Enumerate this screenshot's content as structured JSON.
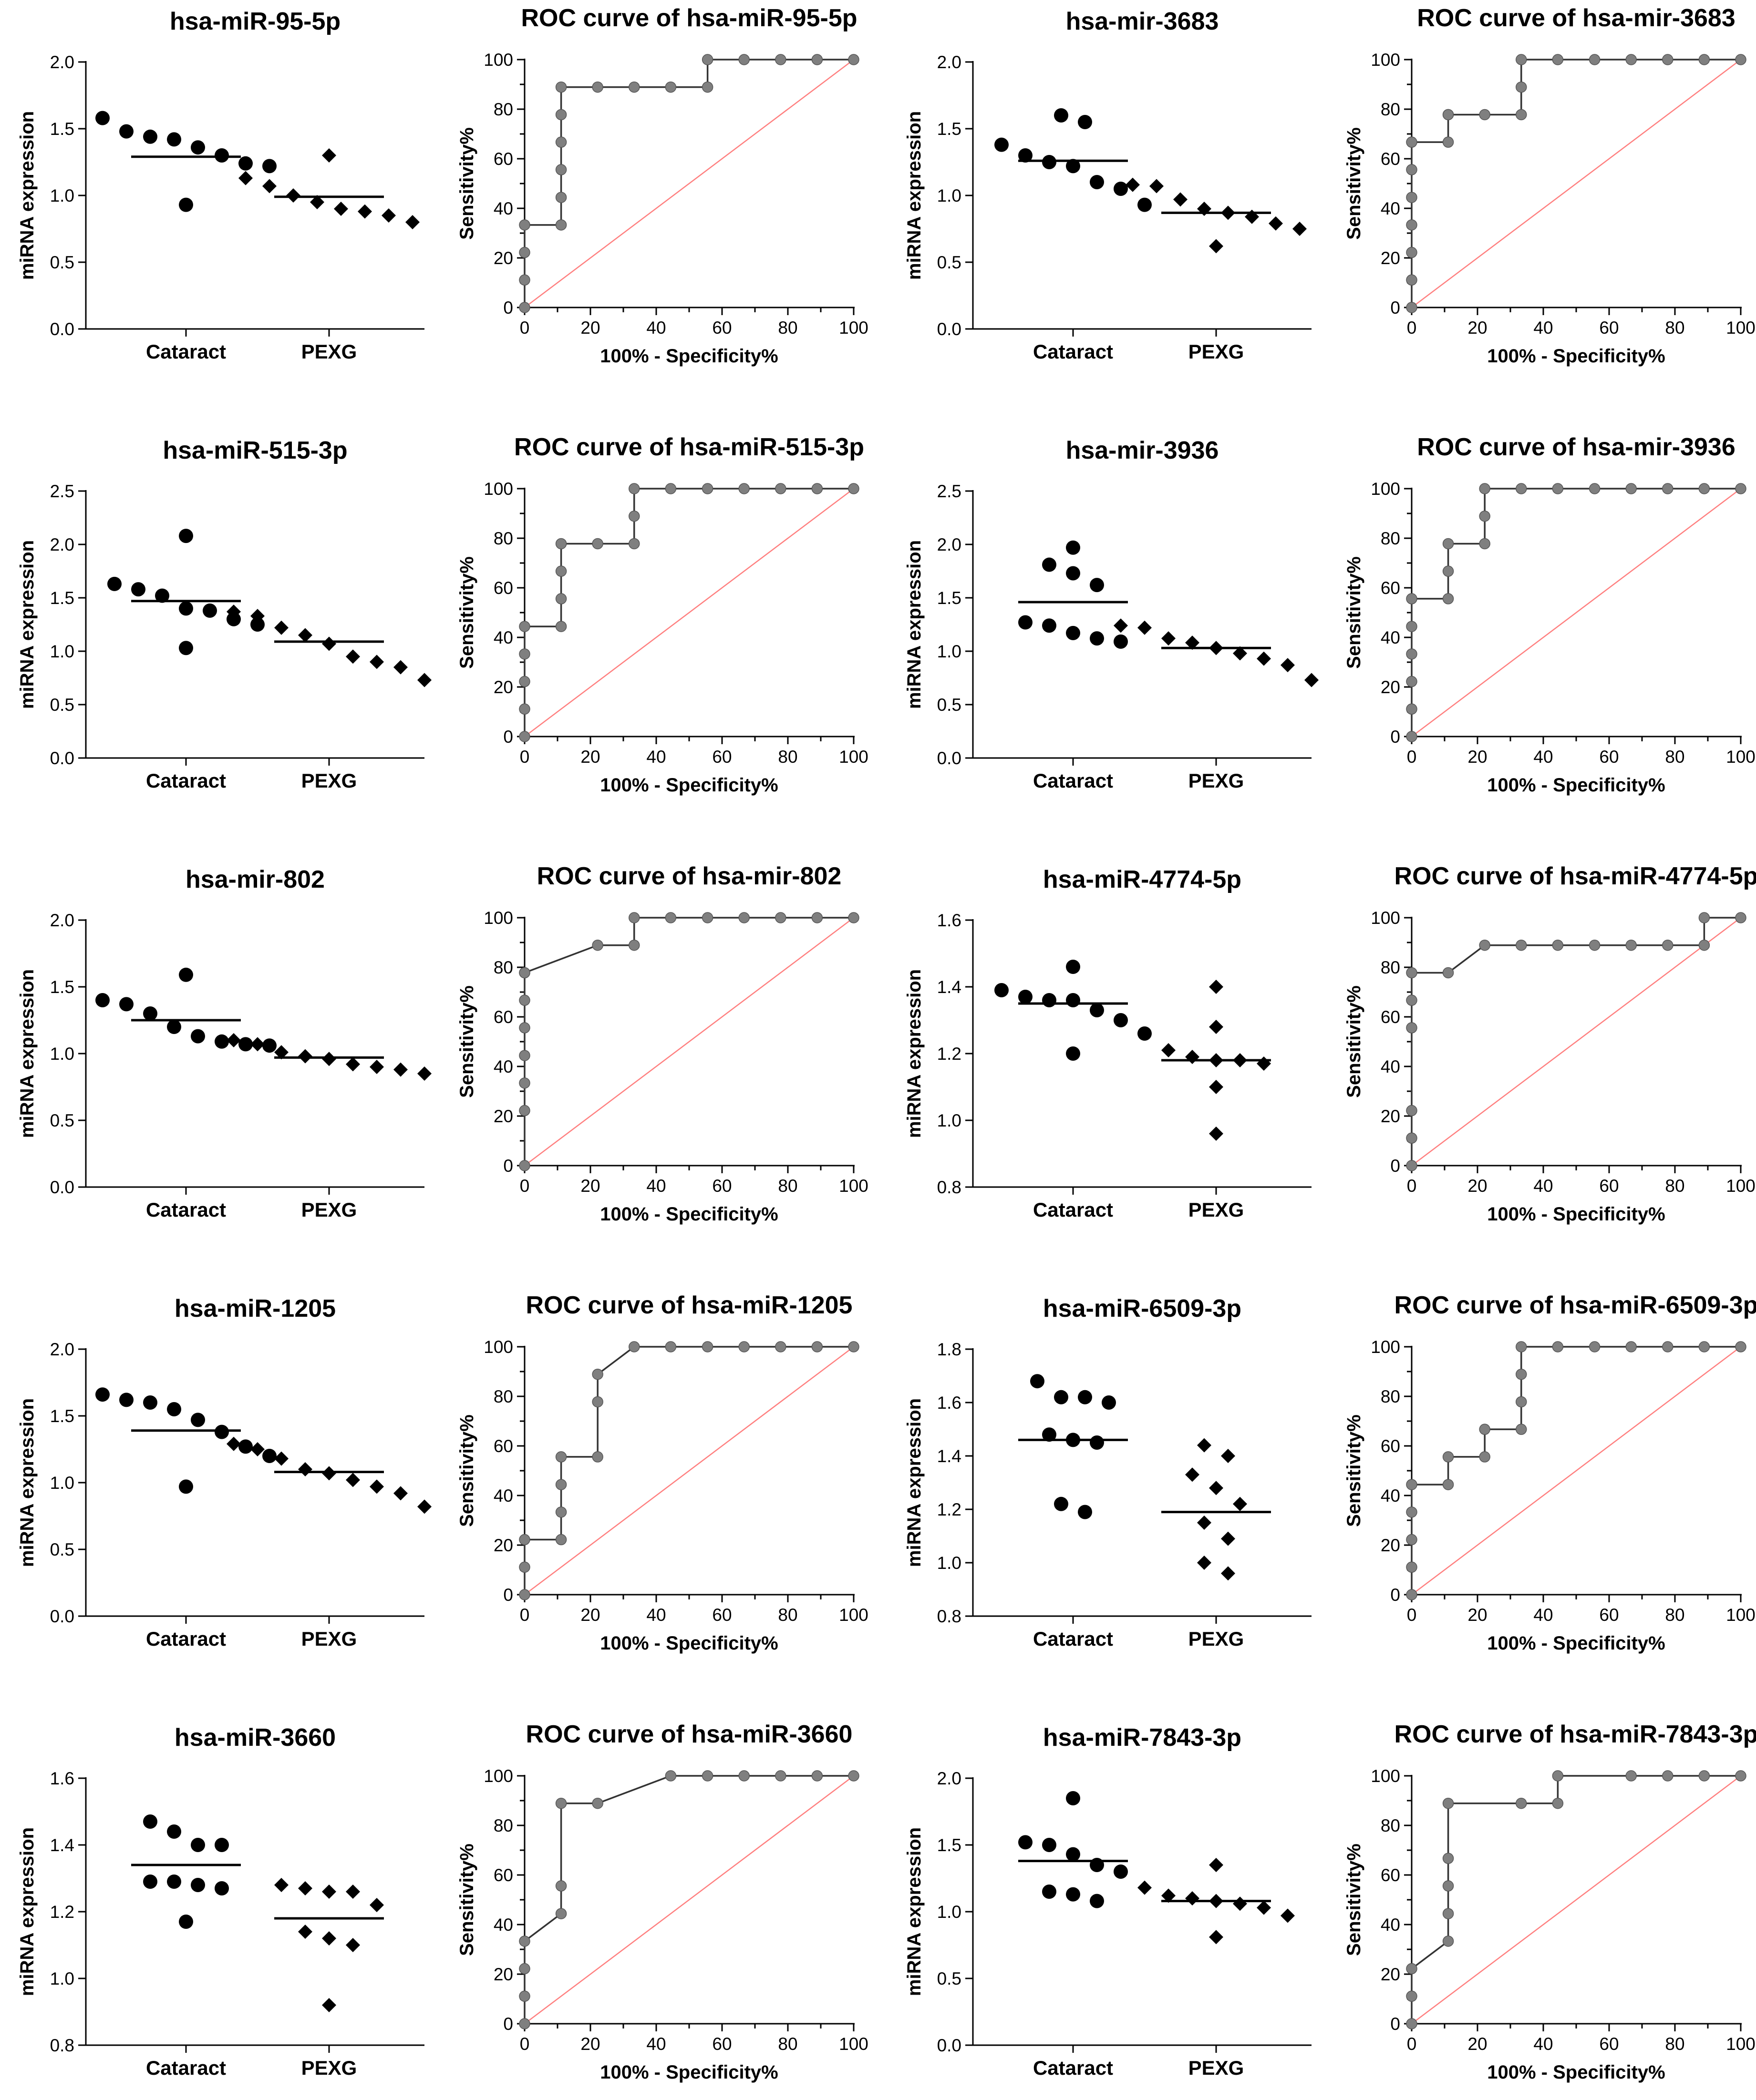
{
  "figure": {
    "colors": {
      "marker": "#000000",
      "roc_line": "#333333",
      "roc_point": "#7f7f7f",
      "diagonal": "#ff7f7f",
      "axis": "#000000"
    }
  },
  "chart_data": [
    {
      "id": "r1c1",
      "type": "scatter",
      "title": "hsa-miR-95-5p",
      "ylabel": "miRNA expression",
      "categories": [
        "Cataract",
        "PEXG"
      ],
      "ylim": [
        0,
        2.0
      ],
      "yticks": [
        "0.0",
        "0.5",
        "1.0",
        "1.5",
        "2.0"
      ],
      "series": [
        {
          "name": "Cataract",
          "marker": "circle",
          "values": [
            1.58,
            1.42,
            1.48,
            1.44,
            1.36,
            1.3,
            1.22,
            1.24,
            0.93
          ],
          "mean": 1.29
        },
        {
          "name": "PEXG",
          "marker": "diamond",
          "values": [
            1.3,
            1.13,
            1.07,
            1.0,
            0.95,
            0.9,
            0.88,
            0.85,
            0.8
          ],
          "mean": 0.99
        }
      ]
    },
    {
      "id": "r1c2",
      "type": "line",
      "title": "ROC curve of hsa-miR-95-5p",
      "xlabel": "100% - Specificity%",
      "ylabel": "Sensitivity%",
      "xlim": [
        0,
        100
      ],
      "ylim": [
        0,
        100
      ],
      "xticks": [
        "0",
        "20",
        "40",
        "60",
        "80",
        "100"
      ],
      "yticks": [
        "0",
        "20",
        "40",
        "60",
        "80",
        "100"
      ],
      "x": [
        0,
        0,
        0,
        0,
        11.1,
        11.1,
        11.1,
        11.1,
        11.1,
        11.1,
        22.2,
        33.3,
        44.4,
        55.6,
        55.6,
        66.7,
        77.8,
        88.9,
        100
      ],
      "y": [
        0,
        11.1,
        22.2,
        33.3,
        33.3,
        44.4,
        55.6,
        66.7,
        77.8,
        88.9,
        88.9,
        88.9,
        88.9,
        88.9,
        100,
        100,
        100,
        100,
        100
      ]
    },
    {
      "id": "r1c3",
      "type": "scatter",
      "title": "hsa-mir-3683",
      "ylabel": "miRNA expression",
      "categories": [
        "Cataract",
        "PEXG"
      ],
      "ylim": [
        0,
        2.0
      ],
      "yticks": [
        "0.0",
        "0.5",
        "1.0",
        "1.5",
        "2.0"
      ],
      "series": [
        {
          "name": "Cataract",
          "marker": "circle",
          "values": [
            1.6,
            1.55,
            1.38,
            1.3,
            1.25,
            1.22,
            1.1,
            1.05,
            0.93
          ],
          "mean": 1.26
        },
        {
          "name": "PEXG",
          "marker": "diamond",
          "values": [
            1.08,
            1.07,
            0.97,
            0.9,
            0.87,
            0.84,
            0.79,
            0.75,
            0.62
          ],
          "mean": 0.87
        }
      ]
    },
    {
      "id": "r1c4",
      "type": "line",
      "title": "ROC curve of hsa-mir-3683",
      "xlabel": "100% - Specificity%",
      "ylabel": "Sensitivity%",
      "xlim": [
        0,
        100
      ],
      "ylim": [
        0,
        100
      ],
      "xticks": [
        "0",
        "20",
        "40",
        "60",
        "80",
        "100"
      ],
      "yticks": [
        "0",
        "20",
        "40",
        "60",
        "80",
        "100"
      ],
      "x": [
        0,
        0,
        0,
        0,
        0,
        0,
        0,
        11.1,
        11.1,
        11.1,
        22.2,
        33.3,
        33.3,
        33.3,
        44.4,
        55.6,
        66.7,
        77.8,
        88.9,
        100
      ],
      "y": [
        0,
        11.1,
        22.2,
        33.3,
        44.4,
        55.6,
        66.7,
        66.7,
        77.8,
        77.8,
        77.8,
        77.8,
        88.9,
        100,
        100,
        100,
        100,
        100,
        100,
        100
      ]
    },
    {
      "id": "r2c1",
      "type": "scatter",
      "title": "hsa-miR-515-3p",
      "ylabel": "miRNA expression",
      "categories": [
        "Cataract",
        "PEXG"
      ],
      "ylim": [
        0,
        2.5
      ],
      "yticks": [
        "0.0",
        "0.5",
        "1.0",
        "1.5",
        "2.0",
        "2.5"
      ],
      "series": [
        {
          "name": "Cataract",
          "marker": "circle",
          "values": [
            2.08,
            1.63,
            1.58,
            1.52,
            1.4,
            1.38,
            1.25,
            1.3,
            1.03
          ],
          "mean": 1.47
        },
        {
          "name": "PEXG",
          "marker": "diamond",
          "values": [
            1.37,
            1.33,
            1.22,
            1.15,
            1.07,
            0.95,
            0.9,
            0.85,
            0.73
          ],
          "mean": 1.09
        }
      ]
    },
    {
      "id": "r2c2",
      "type": "line",
      "title": "ROC curve of hsa-miR-515-3p",
      "xlabel": "100% - Specificity%",
      "ylabel": "Sensitivity%",
      "xlim": [
        0,
        100
      ],
      "ylim": [
        0,
        100
      ],
      "xticks": [
        "0",
        "20",
        "40",
        "60",
        "80",
        "100"
      ],
      "yticks": [
        "0",
        "20",
        "40",
        "60",
        "80",
        "100"
      ],
      "x": [
        0,
        0,
        0,
        0,
        0,
        11.1,
        11.1,
        11.1,
        11.1,
        22.2,
        33.3,
        33.3,
        33.3,
        44.4,
        55.6,
        66.7,
        77.8,
        88.9,
        100
      ],
      "y": [
        0,
        11.1,
        22.2,
        33.3,
        44.4,
        44.4,
        55.6,
        66.7,
        77.8,
        77.8,
        77.8,
        88.9,
        100,
        100,
        100,
        100,
        100,
        100,
        100
      ]
    },
    {
      "id": "r2c3",
      "type": "scatter",
      "title": "hsa-mir-3936",
      "ylabel": "miRNA expression",
      "categories": [
        "Cataract",
        "PEXG"
      ],
      "ylim": [
        0,
        2.5
      ],
      "yticks": [
        "0.0",
        "0.5",
        "1.0",
        "1.5",
        "2.0",
        "2.5"
      ],
      "series": [
        {
          "name": "Cataract",
          "marker": "circle",
          "values": [
            1.97,
            1.81,
            1.73,
            1.62,
            1.27,
            1.24,
            1.17,
            1.12,
            1.09
          ],
          "mean": 1.46
        },
        {
          "name": "PEXG",
          "marker": "diamond",
          "values": [
            1.24,
            1.22,
            1.12,
            1.08,
            1.03,
            0.98,
            0.93,
            0.87,
            0.73
          ],
          "mean": 1.03
        }
      ]
    },
    {
      "id": "r2c4",
      "type": "line",
      "title": "ROC curve of hsa-mir-3936",
      "xlabel": "100% - Specificity%",
      "ylabel": "Sensitivity%",
      "xlim": [
        0,
        100
      ],
      "ylim": [
        0,
        100
      ],
      "xticks": [
        "0",
        "20",
        "40",
        "60",
        "80",
        "100"
      ],
      "yticks": [
        "0",
        "20",
        "40",
        "60",
        "80",
        "100"
      ],
      "x": [
        0,
        0,
        0,
        0,
        0,
        0,
        11.1,
        11.1,
        11.1,
        22.2,
        22.2,
        22.2,
        33.3,
        44.4,
        55.6,
        66.7,
        77.8,
        88.9,
        100
      ],
      "y": [
        0,
        11.1,
        22.2,
        33.3,
        44.4,
        55.6,
        55.6,
        66.7,
        77.8,
        77.8,
        88.9,
        100,
        100,
        100,
        100,
        100,
        100,
        100,
        100
      ]
    },
    {
      "id": "r3c1",
      "type": "scatter",
      "title": "hsa-mir-802",
      "ylabel": "miRNA expression",
      "categories": [
        "Cataract",
        "PEXG"
      ],
      "ylim": [
        0,
        2.0
      ],
      "yticks": [
        "0.0",
        "0.5",
        "1.0",
        "1.5",
        "2.0"
      ],
      "series": [
        {
          "name": "Cataract",
          "marker": "circle",
          "values": [
            1.59,
            1.4,
            1.37,
            1.3,
            1.2,
            1.13,
            1.09,
            1.07,
            1.06
          ],
          "mean": 1.25
        },
        {
          "name": "PEXG",
          "marker": "diamond",
          "values": [
            1.1,
            1.07,
            1.01,
            0.98,
            0.96,
            0.92,
            0.9,
            0.88,
            0.85
          ],
          "mean": 0.97
        }
      ]
    },
    {
      "id": "r3c2",
      "type": "line",
      "title": "ROC curve of hsa-mir-802",
      "xlabel": "100% - Specificity%",
      "ylabel": "Sensitivity%",
      "xlim": [
        0,
        100
      ],
      "ylim": [
        0,
        100
      ],
      "xticks": [
        "0",
        "20",
        "40",
        "60",
        "80",
        "100"
      ],
      "yticks": [
        "0",
        "20",
        "40",
        "60",
        "80",
        "100"
      ],
      "x": [
        0,
        0,
        0,
        0,
        0,
        0,
        0,
        0,
        22.2,
        33.3,
        33.3,
        44.4,
        55.6,
        66.7,
        77.8,
        88.9,
        100
      ],
      "y": [
        0,
        22.2,
        33.3,
        44.4,
        55.6,
        66.7,
        77.8,
        77.8,
        88.9,
        88.9,
        100,
        100,
        100,
        100,
        100,
        100,
        100
      ]
    },
    {
      "id": "r3c3",
      "type": "scatter",
      "title": "hsa-miR-4774-5p",
      "ylabel": "miRNA expression",
      "categories": [
        "Cataract",
        "PEXG"
      ],
      "ylim": [
        0.8,
        1.6
      ],
      "yticks": [
        "0.8",
        "1.0",
        "1.2",
        "1.4",
        "1.6"
      ],
      "series": [
        {
          "name": "Cataract",
          "marker": "circle",
          "values": [
            1.46,
            1.39,
            1.37,
            1.36,
            1.36,
            1.33,
            1.3,
            1.26,
            1.2
          ],
          "mean": 1.35
        },
        {
          "name": "PEXG",
          "marker": "diamond",
          "values": [
            1.4,
            1.28,
            1.21,
            1.19,
            1.18,
            1.18,
            1.17,
            1.1,
            0.96
          ],
          "mean": 1.18
        }
      ]
    },
    {
      "id": "r3c4",
      "type": "line",
      "title": "ROC curve of hsa-miR-4774-5p",
      "xlabel": "100% - Specificity%",
      "ylabel": "Sensitivity%",
      "xlim": [
        0,
        100
      ],
      "ylim": [
        0,
        100
      ],
      "xticks": [
        "0",
        "20",
        "40",
        "60",
        "80",
        "100"
      ],
      "yticks": [
        "0",
        "20",
        "40",
        "60",
        "80",
        "100"
      ],
      "x": [
        0,
        0,
        0,
        0,
        0,
        0,
        11.1,
        22.2,
        33.3,
        44.4,
        55.6,
        66.7,
        77.8,
        88.9,
        88.9,
        100
      ],
      "y": [
        0,
        11.1,
        22.2,
        55.6,
        66.7,
        77.8,
        77.8,
        88.9,
        88.9,
        88.9,
        88.9,
        88.9,
        88.9,
        88.9,
        100,
        100
      ]
    },
    {
      "id": "r4c1",
      "type": "scatter",
      "title": "hsa-miR-1205",
      "ylabel": "miRNA expression",
      "categories": [
        "Cataract",
        "PEXG"
      ],
      "ylim": [
        0,
        2.0
      ],
      "yticks": [
        "0.0",
        "0.5",
        "1.0",
        "1.5",
        "2.0"
      ],
      "series": [
        {
          "name": "Cataract",
          "marker": "circle",
          "values": [
            1.66,
            1.62,
            1.6,
            1.55,
            1.47,
            1.38,
            1.27,
            1.2,
            0.97
          ],
          "mean": 1.39
        },
        {
          "name": "PEXG",
          "marker": "diamond",
          "values": [
            1.29,
            1.25,
            1.18,
            1.1,
            1.07,
            1.02,
            0.97,
            0.92,
            0.82
          ],
          "mean": 1.08
        }
      ]
    },
    {
      "id": "r4c2",
      "type": "line",
      "title": "ROC curve of hsa-miR-1205",
      "xlabel": "100% - Specificity%",
      "ylabel": "Sensitivity%",
      "xlim": [
        0,
        100
      ],
      "ylim": [
        0,
        100
      ],
      "xticks": [
        "0",
        "20",
        "40",
        "60",
        "80",
        "100"
      ],
      "yticks": [
        "0",
        "20",
        "40",
        "60",
        "80",
        "100"
      ],
      "x": [
        0,
        0,
        0,
        11.1,
        11.1,
        11.1,
        11.1,
        22.2,
        22.2,
        22.2,
        33.3,
        44.4,
        55.6,
        66.7,
        77.8,
        88.9,
        100
      ],
      "y": [
        0,
        11.1,
        22.2,
        22.2,
        33.3,
        44.4,
        55.6,
        55.6,
        77.8,
        88.9,
        100,
        100,
        100,
        100,
        100,
        100,
        100
      ]
    },
    {
      "id": "r4c3",
      "type": "scatter",
      "title": "hsa-miR-6509-3p",
      "ylabel": "miRNA expression",
      "categories": [
        "Cataract",
        "PEXG"
      ],
      "ylim": [
        0.8,
        1.8
      ],
      "yticks": [
        "0.8",
        "1.0",
        "1.2",
        "1.4",
        "1.6",
        "1.8"
      ],
      "series": [
        {
          "name": "Cataract",
          "marker": "circle",
          "values": [
            1.68,
            1.62,
            1.62,
            1.6,
            1.48,
            1.46,
            1.45,
            1.22,
            1.19
          ],
          "mean": 1.46
        },
        {
          "name": "PEXG",
          "marker": "diamond",
          "values": [
            1.44,
            1.4,
            1.33,
            1.28,
            1.22,
            1.15,
            1.09,
            1.0,
            0.96
          ],
          "mean": 1.19
        }
      ]
    },
    {
      "id": "r4c4",
      "type": "line",
      "title": "ROC curve of hsa-miR-6509-3p",
      "xlabel": "100% - Specificity%",
      "ylabel": "Sensitivity%",
      "xlim": [
        0,
        100
      ],
      "ylim": [
        0,
        100
      ],
      "xticks": [
        "0",
        "20",
        "40",
        "60",
        "80",
        "100"
      ],
      "yticks": [
        "0",
        "20",
        "40",
        "60",
        "80",
        "100"
      ],
      "x": [
        0,
        0,
        0,
        0,
        0,
        11.1,
        11.1,
        22.2,
        22.2,
        33.3,
        33.3,
        33.3,
        33.3,
        44.4,
        55.6,
        66.7,
        77.8,
        88.9,
        100
      ],
      "y": [
        0,
        11.1,
        22.2,
        33.3,
        44.4,
        44.4,
        55.6,
        55.6,
        66.7,
        66.7,
        77.8,
        88.9,
        100,
        100,
        100,
        100,
        100,
        100,
        100
      ]
    },
    {
      "id": "r5c1",
      "type": "scatter",
      "title": "hsa-miR-3660",
      "ylabel": "miRNA expression",
      "categories": [
        "Cataract",
        "PEXG"
      ],
      "ylim": [
        0.8,
        1.6
      ],
      "yticks": [
        "0.8",
        "1.0",
        "1.2",
        "1.4",
        "1.6"
      ],
      "series": [
        {
          "name": "Cataract",
          "marker": "circle",
          "values": [
            1.47,
            1.44,
            1.4,
            1.4,
            1.29,
            1.29,
            1.28,
            1.27,
            1.17
          ],
          "mean": 1.34
        },
        {
          "name": "PEXG",
          "marker": "diamond",
          "values": [
            1.28,
            1.27,
            1.26,
            1.26,
            1.22,
            1.14,
            1.12,
            1.1,
            0.92
          ],
          "mean": 1.18
        }
      ]
    },
    {
      "id": "r5c2",
      "type": "line",
      "title": "ROC curve of hsa-miR-3660",
      "xlabel": "100% - Specificity%",
      "ylabel": "Sensitivity%",
      "xlim": [
        0,
        100
      ],
      "ylim": [
        0,
        100
      ],
      "xticks": [
        "0",
        "20",
        "40",
        "60",
        "80",
        "100"
      ],
      "yticks": [
        "0",
        "20",
        "40",
        "60",
        "80",
        "100"
      ],
      "x": [
        0,
        0,
        0,
        0,
        11.1,
        11.1,
        11.1,
        22.2,
        44.4,
        55.6,
        66.7,
        77.8,
        88.9,
        100
      ],
      "y": [
        0,
        11.1,
        22.2,
        33.3,
        44.4,
        55.6,
        88.9,
        88.9,
        100,
        100,
        100,
        100,
        100,
        100
      ]
    },
    {
      "id": "r5c3",
      "type": "scatter",
      "title": "hsa-miR-7843-3p",
      "ylabel": "miRNA expression",
      "categories": [
        "Cataract",
        "PEXG"
      ],
      "ylim": [
        0,
        2.0
      ],
      "yticks": [
        "0.0",
        "0.5",
        "1.0",
        "1.5",
        "2.0"
      ],
      "series": [
        {
          "name": "Cataract",
          "marker": "circle",
          "values": [
            1.85,
            1.52,
            1.5,
            1.43,
            1.35,
            1.3,
            1.15,
            1.13,
            1.08
          ],
          "mean": 1.38
        },
        {
          "name": "PEXG",
          "marker": "diamond",
          "values": [
            1.35,
            1.18,
            1.12,
            1.1,
            1.08,
            1.06,
            1.03,
            0.97,
            0.81
          ],
          "mean": 1.08
        }
      ]
    },
    {
      "id": "r5c4",
      "type": "line",
      "title": "ROC curve of hsa-miR-7843-3p",
      "xlabel": "100% - Specificity%",
      "ylabel": "Sensitivity%",
      "xlim": [
        0,
        100
      ],
      "ylim": [
        0,
        100
      ],
      "xticks": [
        "0",
        "20",
        "40",
        "60",
        "80",
        "100"
      ],
      "yticks": [
        "0",
        "20",
        "40",
        "60",
        "80",
        "100"
      ],
      "x": [
        0,
        0,
        0,
        11.1,
        11.1,
        11.1,
        11.1,
        11.1,
        33.3,
        44.4,
        44.4,
        66.7,
        77.8,
        88.9,
        100
      ],
      "y": [
        0,
        11.1,
        22.2,
        33.3,
        44.4,
        55.6,
        66.7,
        88.9,
        88.9,
        88.9,
        100,
        100,
        100,
        100,
        100
      ]
    }
  ]
}
